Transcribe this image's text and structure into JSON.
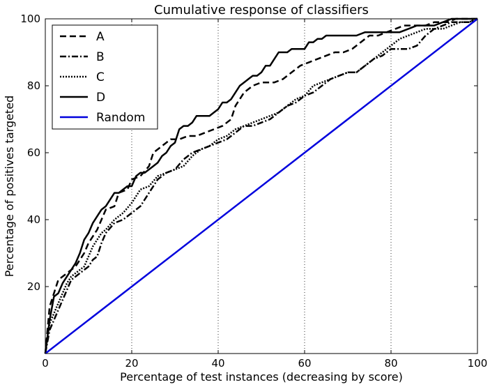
{
  "chart_data": {
    "type": "line",
    "title": "Cumulative response of classifiers",
    "xlabel": "Percentage of test instances (decreasing by score)",
    "ylabel": "Percentage of positives targeted",
    "xlim": [
      0,
      100
    ],
    "ylim": [
      0,
      100
    ],
    "x_ticks": [
      0,
      20,
      40,
      60,
      80,
      100
    ],
    "y_ticks": [
      20,
      40,
      60,
      80,
      100
    ],
    "x_tick_labels": [
      "0",
      "20",
      "40",
      "60",
      "80",
      "100"
    ],
    "y_tick_labels": [
      "20",
      "40",
      "60",
      "80",
      "100"
    ],
    "vertical_grid": [
      20,
      40,
      60,
      80
    ],
    "grid_style": "dotted vertical lines only",
    "legend_position": "upper-left",
    "series": [
      {
        "name": "A",
        "style": "dashed",
        "color": "#000000",
        "points": [
          [
            0,
            0
          ],
          [
            1,
            14
          ],
          [
            2,
            18
          ],
          [
            3,
            22
          ],
          [
            5,
            24
          ],
          [
            7,
            26
          ],
          [
            9,
            30
          ],
          [
            10,
            33
          ],
          [
            12,
            37
          ],
          [
            14,
            43
          ],
          [
            16,
            44
          ],
          [
            17,
            48
          ],
          [
            19,
            49
          ],
          [
            20,
            52
          ],
          [
            22,
            53
          ],
          [
            24,
            56
          ],
          [
            25,
            60
          ],
          [
            27,
            62
          ],
          [
            29,
            64
          ],
          [
            31,
            64
          ],
          [
            33,
            65
          ],
          [
            35,
            65
          ],
          [
            37,
            66
          ],
          [
            39,
            67
          ],
          [
            41,
            68
          ],
          [
            43,
            70
          ],
          [
            44,
            74
          ],
          [
            46,
            78
          ],
          [
            48,
            80
          ],
          [
            50,
            81
          ],
          [
            53,
            81
          ],
          [
            55,
            82
          ],
          [
            57,
            84
          ],
          [
            59,
            86
          ],
          [
            61,
            87
          ],
          [
            63,
            88
          ],
          [
            65,
            89
          ],
          [
            67,
            90
          ],
          [
            69,
            90
          ],
          [
            71,
            91
          ],
          [
            73,
            93
          ],
          [
            75,
            95
          ],
          [
            77,
            95
          ],
          [
            79,
            96
          ],
          [
            81,
            97
          ],
          [
            83,
            98
          ],
          [
            85,
            98
          ],
          [
            88,
            98
          ],
          [
            90,
            99
          ],
          [
            93,
            99
          ],
          [
            95,
            100
          ],
          [
            100,
            100
          ]
        ]
      },
      {
        "name": "B",
        "style": "dash-dot",
        "color": "#000000",
        "points": [
          [
            0,
            0
          ],
          [
            1,
            7
          ],
          [
            2,
            10
          ],
          [
            3,
            13
          ],
          [
            4,
            16
          ],
          [
            5,
            19
          ],
          [
            6,
            22
          ],
          [
            8,
            24
          ],
          [
            9,
            25
          ],
          [
            10,
            26
          ],
          [
            11,
            28
          ],
          [
            12,
            29
          ],
          [
            13,
            33
          ],
          [
            14,
            36
          ],
          [
            16,
            39
          ],
          [
            18,
            40
          ],
          [
            20,
            42
          ],
          [
            22,
            44
          ],
          [
            24,
            48
          ],
          [
            26,
            52
          ],
          [
            28,
            54
          ],
          [
            30,
            55
          ],
          [
            32,
            58
          ],
          [
            34,
            60
          ],
          [
            36,
            61
          ],
          [
            38,
            62
          ],
          [
            40,
            63
          ],
          [
            42,
            64
          ],
          [
            44,
            66
          ],
          [
            46,
            68
          ],
          [
            48,
            68
          ],
          [
            50,
            69
          ],
          [
            52,
            70
          ],
          [
            54,
            72
          ],
          [
            56,
            74
          ],
          [
            58,
            75
          ],
          [
            60,
            77
          ],
          [
            62,
            78
          ],
          [
            64,
            80
          ],
          [
            66,
            82
          ],
          [
            68,
            83
          ],
          [
            70,
            84
          ],
          [
            72,
            84
          ],
          [
            74,
            86
          ],
          [
            76,
            88
          ],
          [
            78,
            89
          ],
          [
            80,
            91
          ],
          [
            82,
            91
          ],
          [
            84,
            91
          ],
          [
            86,
            92
          ],
          [
            88,
            95
          ],
          [
            90,
            97
          ],
          [
            92,
            98
          ],
          [
            94,
            99
          ],
          [
            96,
            99
          ],
          [
            98,
            99
          ],
          [
            100,
            100
          ]
        ]
      },
      {
        "name": "C",
        "style": "dotted",
        "color": "#000000",
        "points": [
          [
            0,
            0
          ],
          [
            1,
            9
          ],
          [
            2,
            12
          ],
          [
            3,
            15
          ],
          [
            4,
            18
          ],
          [
            5,
            21
          ],
          [
            6,
            23
          ],
          [
            8,
            25
          ],
          [
            9,
            26
          ],
          [
            10,
            29
          ],
          [
            11,
            32
          ],
          [
            12,
            34
          ],
          [
            13,
            36
          ],
          [
            14,
            37
          ],
          [
            16,
            40
          ],
          [
            18,
            42
          ],
          [
            20,
            45
          ],
          [
            22,
            49
          ],
          [
            24,
            50
          ],
          [
            26,
            53
          ],
          [
            28,
            54
          ],
          [
            30,
            55
          ],
          [
            32,
            56
          ],
          [
            34,
            59
          ],
          [
            36,
            61
          ],
          [
            38,
            62
          ],
          [
            40,
            64
          ],
          [
            42,
            65
          ],
          [
            44,
            67
          ],
          [
            46,
            68
          ],
          [
            48,
            69
          ],
          [
            50,
            70
          ],
          [
            52,
            71
          ],
          [
            54,
            72
          ],
          [
            56,
            74
          ],
          [
            58,
            76
          ],
          [
            60,
            77
          ],
          [
            62,
            80
          ],
          [
            64,
            81
          ],
          [
            66,
            82
          ],
          [
            68,
            83
          ],
          [
            70,
            84
          ],
          [
            72,
            84
          ],
          [
            74,
            86
          ],
          [
            76,
            88
          ],
          [
            78,
            90
          ],
          [
            80,
            92
          ],
          [
            82,
            94
          ],
          [
            84,
            95
          ],
          [
            86,
            96
          ],
          [
            88,
            97
          ],
          [
            90,
            97
          ],
          [
            92,
            97
          ],
          [
            94,
            98
          ],
          [
            96,
            99
          ],
          [
            98,
            99
          ],
          [
            100,
            100
          ]
        ]
      },
      {
        "name": "D",
        "style": "solid",
        "color": "#000000",
        "points": [
          [
            0,
            0
          ],
          [
            1,
            10
          ],
          [
            2,
            17
          ],
          [
            3,
            18
          ],
          [
            4,
            21
          ],
          [
            5,
            23
          ],
          [
            6,
            25
          ],
          [
            7,
            27
          ],
          [
            8,
            30
          ],
          [
            9,
            34
          ],
          [
            10,
            36
          ],
          [
            11,
            39
          ],
          [
            12,
            41
          ],
          [
            13,
            43
          ],
          [
            14,
            44
          ],
          [
            15,
            46
          ],
          [
            16,
            48
          ],
          [
            17,
            48
          ],
          [
            18,
            49
          ],
          [
            19,
            50
          ],
          [
            20,
            50
          ],
          [
            21,
            53
          ],
          [
            22,
            54
          ],
          [
            23,
            54
          ],
          [
            24,
            55
          ],
          [
            25,
            56
          ],
          [
            26,
            57
          ],
          [
            27,
            59
          ],
          [
            28,
            60
          ],
          [
            29,
            62
          ],
          [
            30,
            63
          ],
          [
            31,
            67
          ],
          [
            32,
            68
          ],
          [
            33,
            68
          ],
          [
            34,
            69
          ],
          [
            35,
            71
          ],
          [
            36,
            71
          ],
          [
            37,
            71
          ],
          [
            38,
            71
          ],
          [
            39,
            72
          ],
          [
            40,
            73
          ],
          [
            41,
            75
          ],
          [
            42,
            75
          ],
          [
            43,
            76
          ],
          [
            44,
            78
          ],
          [
            45,
            80
          ],
          [
            46,
            81
          ],
          [
            47,
            82
          ],
          [
            48,
            83
          ],
          [
            49,
            83
          ],
          [
            50,
            84
          ],
          [
            51,
            86
          ],
          [
            52,
            86
          ],
          [
            53,
            88
          ],
          [
            54,
            90
          ],
          [
            55,
            90
          ],
          [
            56,
            90
          ],
          [
            57,
            91
          ],
          [
            58,
            91
          ],
          [
            59,
            91
          ],
          [
            60,
            91
          ],
          [
            61,
            93
          ],
          [
            62,
            93
          ],
          [
            63,
            94
          ],
          [
            64,
            94
          ],
          [
            65,
            95
          ],
          [
            66,
            95
          ],
          [
            68,
            95
          ],
          [
            70,
            95
          ],
          [
            72,
            95
          ],
          [
            74,
            96
          ],
          [
            76,
            96
          ],
          [
            78,
            96
          ],
          [
            80,
            96
          ],
          [
            82,
            96
          ],
          [
            84,
            97
          ],
          [
            86,
            98
          ],
          [
            88,
            98
          ],
          [
            90,
            98
          ],
          [
            92,
            99
          ],
          [
            94,
            100
          ],
          [
            100,
            100
          ]
        ]
      },
      {
        "name": "Random",
        "style": "solid",
        "color": "#0000dd",
        "points": [
          [
            0,
            0
          ],
          [
            100,
            100
          ]
        ]
      }
    ]
  }
}
